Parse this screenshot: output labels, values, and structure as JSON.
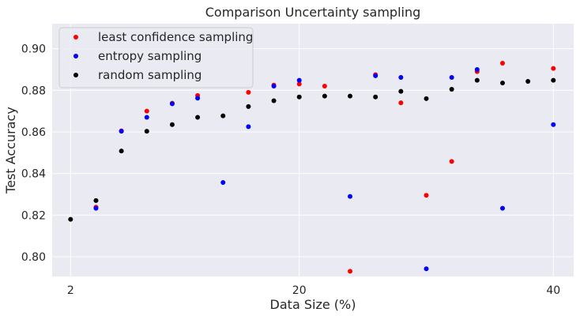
{
  "chart_data": {
    "type": "scatter",
    "title": "Comparison Uncertainty sampling",
    "xlabel": "Data Size (%)",
    "ylabel": "Test Accuracy",
    "x": [
      2,
      4,
      6,
      8,
      10,
      12,
      14,
      16,
      18,
      20,
      22,
      24,
      26,
      28,
      30,
      32,
      34,
      36,
      38,
      40
    ],
    "xticks": [
      2,
      20,
      40
    ],
    "yticks": [
      0.8,
      0.82,
      0.84,
      0.86,
      0.88,
      0.9
    ],
    "ytick_labels": [
      "0.80",
      "0.82",
      "0.84",
      "0.86",
      "0.88",
      "0.90"
    ],
    "xlim": [
      0.55,
      41.6
    ],
    "ylim": [
      0.7905,
      0.912
    ],
    "grid": true,
    "legend_position": "top-left",
    "background": "#eaeaf2",
    "series": [
      {
        "name": "least confidence sampling",
        "color": "#ff0000",
        "points": [
          [
            4,
            0.8238
          ],
          [
            6,
            0.8605
          ],
          [
            8,
            0.87
          ],
          [
            10,
            0.8738
          ],
          [
            12,
            0.8775
          ],
          [
            16,
            0.879
          ],
          [
            18,
            0.8825
          ],
          [
            20,
            0.883
          ],
          [
            22,
            0.882
          ],
          [
            24,
            0.793
          ],
          [
            26,
            0.8875
          ],
          [
            28,
            0.874
          ],
          [
            30,
            0.8295
          ],
          [
            32,
            0.8458
          ],
          [
            34,
            0.889
          ],
          [
            36,
            0.893
          ],
          [
            40,
            0.8905
          ]
        ]
      },
      {
        "name": "entropy sampling",
        "color": "#0000ff",
        "points": [
          [
            4,
            0.8233
          ],
          [
            6,
            0.8603
          ],
          [
            8,
            0.867
          ],
          [
            10,
            0.8735
          ],
          [
            12,
            0.8762
          ],
          [
            14,
            0.8357
          ],
          [
            16,
            0.8625
          ],
          [
            18,
            0.882
          ],
          [
            20,
            0.8848
          ],
          [
            24,
            0.829
          ],
          [
            26,
            0.887
          ],
          [
            28,
            0.8862
          ],
          [
            30,
            0.7942
          ],
          [
            32,
            0.8862
          ],
          [
            34,
            0.89
          ],
          [
            36,
            0.8233
          ],
          [
            40,
            0.8635
          ]
        ]
      },
      {
        "name": "random sampling",
        "color": "#000000",
        "points": [
          [
            2,
            0.818
          ],
          [
            4,
            0.827
          ],
          [
            6,
            0.8508
          ],
          [
            8,
            0.8603
          ],
          [
            10,
            0.8635
          ],
          [
            12,
            0.867
          ],
          [
            14,
            0.8677
          ],
          [
            16,
            0.8722
          ],
          [
            18,
            0.875
          ],
          [
            20,
            0.8768
          ],
          [
            22,
            0.8772
          ],
          [
            24,
            0.8772
          ],
          [
            26,
            0.8768
          ],
          [
            28,
            0.8795
          ],
          [
            30,
            0.876
          ],
          [
            32,
            0.8805
          ],
          [
            34,
            0.8848
          ],
          [
            36,
            0.8835
          ],
          [
            38,
            0.8843
          ],
          [
            40,
            0.8848
          ]
        ]
      }
    ]
  }
}
